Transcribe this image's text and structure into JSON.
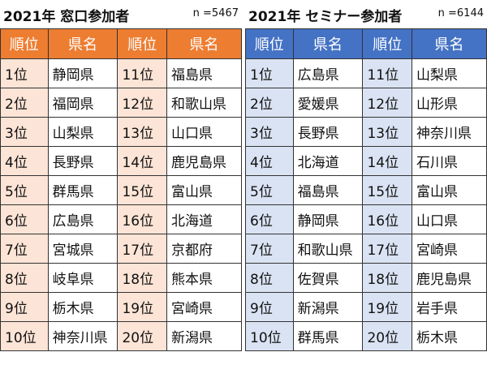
{
  "left": {
    "title": "2021年 窓口参加者",
    "count": "n =5467",
    "colors": {
      "header_bg": "#ed7d31",
      "rank_cell_bg": "#fce4d6"
    },
    "headers": [
      "順位",
      "県名",
      "順位",
      "県名"
    ],
    "rows": [
      [
        "1位",
        "静岡県",
        "11位",
        "福島県"
      ],
      [
        "2位",
        "福岡県",
        "12位",
        "和歌山県"
      ],
      [
        "3位",
        "山梨県",
        "13位",
        "山口県"
      ],
      [
        "4位",
        "長野県",
        "14位",
        "鹿児島県"
      ],
      [
        "5位",
        "群馬県",
        "15位",
        "富山県"
      ],
      [
        "6位",
        "広島県",
        "16位",
        "北海道"
      ],
      [
        "7位",
        "宮城県",
        "17位",
        "京都府"
      ],
      [
        "8位",
        "岐阜県",
        "18位",
        "熊本県"
      ],
      [
        "9位",
        "栃木県",
        "19位",
        "宮崎県"
      ],
      [
        "10位",
        "神奈川県",
        "20位",
        "新潟県"
      ]
    ]
  },
  "right": {
    "title": "2021年 セミナー参加者",
    "count": "n =6144",
    "colors": {
      "header_bg": "#4472c4",
      "rank_cell_bg": "#dae3f3"
    },
    "headers": [
      "順位",
      "県名",
      "順位",
      "県名"
    ],
    "rows": [
      [
        "1位",
        "広島県",
        "11位",
        "山梨県"
      ],
      [
        "2位",
        "愛媛県",
        "12位",
        "山形県"
      ],
      [
        "3位",
        "長野県",
        "13位",
        "神奈川県"
      ],
      [
        "4位",
        "北海道",
        "14位",
        "石川県"
      ],
      [
        "5位",
        "福島県",
        "15位",
        "富山県"
      ],
      [
        "6位",
        "静岡県",
        "16位",
        "山口県"
      ],
      [
        "7位",
        "和歌山県",
        "17位",
        "宮崎県"
      ],
      [
        "8位",
        "佐賀県",
        "18位",
        "鹿児島県"
      ],
      [
        "9位",
        "新潟県",
        "19位",
        "岩手県"
      ],
      [
        "10位",
        "群馬県",
        "20位",
        "栃木県"
      ]
    ]
  }
}
